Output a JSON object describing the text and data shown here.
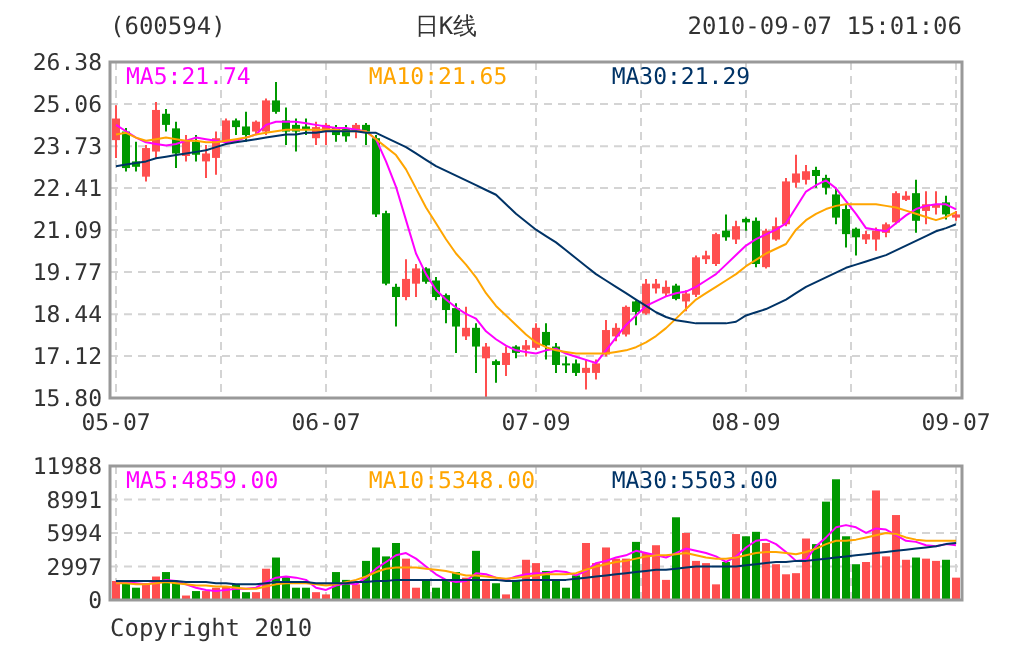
{
  "chart_data": [
    {
      "type": "candlestick",
      "title": "(600594)",
      "subtitle": "日K线",
      "annotations": [
        "2010-09-07 15:01:06"
      ],
      "categories": [
        "05-07",
        null,
        null,
        null,
        null,
        null,
        null,
        null,
        null,
        null,
        null,
        null,
        null,
        null,
        null,
        null,
        null,
        null,
        null,
        null,
        null,
        "06-07",
        null,
        null,
        null,
        null,
        null,
        null,
        null,
        null,
        null,
        null,
        null,
        null,
        null,
        null,
        null,
        null,
        null,
        null,
        null,
        null,
        "07-09",
        null,
        null,
        null,
        null,
        null,
        null,
        null,
        null,
        null,
        null,
        null,
        null,
        null,
        null,
        null,
        null,
        null,
        null,
        null,
        null,
        "08-09",
        null,
        null,
        null,
        null,
        null,
        null,
        null,
        null,
        null,
        null,
        null,
        null,
        null,
        null,
        null,
        null,
        null,
        null,
        null,
        null,
        "09-07"
      ],
      "ohlc": [
        [
          23.92,
          25.02,
          23.36,
          24.6
        ],
        [
          24.19,
          24.3,
          22.93,
          23.04
        ],
        [
          23.25,
          23.87,
          22.93,
          23.08
        ],
        [
          22.77,
          23.77,
          22.62,
          23.67
        ],
        [
          23.56,
          25.12,
          23.36,
          24.87
        ],
        [
          24.75,
          24.9,
          24.19,
          24.4
        ],
        [
          24.29,
          24.5,
          23.04,
          23.5
        ],
        [
          23.42,
          24.08,
          23.25,
          23.92
        ],
        [
          23.87,
          24.08,
          23.25,
          23.46
        ],
        [
          23.25,
          23.77,
          22.73,
          23.5
        ],
        [
          23.36,
          24.19,
          22.83,
          23.98
        ],
        [
          23.87,
          24.6,
          23.87,
          24.54
        ],
        [
          24.54,
          24.6,
          24.08,
          24.33
        ],
        [
          24.35,
          24.81,
          23.87,
          24.08
        ],
        [
          24.19,
          24.54,
          24.08,
          24.5
        ],
        [
          24.19,
          25.23,
          24.08,
          25.17
        ],
        [
          25.17,
          25.75,
          24.75,
          24.81
        ],
        [
          24.54,
          24.95,
          23.77,
          24.19
        ],
        [
          24.4,
          24.6,
          23.56,
          24.19
        ],
        [
          24.35,
          24.6,
          24.08,
          24.25
        ],
        [
          23.98,
          24.5,
          23.77,
          24.33
        ],
        [
          24.19,
          24.46,
          23.77,
          24.4
        ],
        [
          24.33,
          24.4,
          23.87,
          24.08
        ],
        [
          24.29,
          24.4,
          23.87,
          24.04
        ],
        [
          24.19,
          24.46,
          23.98,
          24.4
        ],
        [
          24.4,
          24.46,
          23.77,
          24.19
        ],
        [
          23.98,
          24.08,
          21.5,
          21.58
        ],
        [
          21.62,
          21.7,
          19.35,
          19.4
        ],
        [
          19.3,
          19.4,
          18.05,
          18.98
        ],
        [
          18.98,
          20.17,
          18.88,
          19.55
        ],
        [
          19.4,
          20.02,
          18.98,
          19.88
        ],
        [
          19.88,
          19.92,
          19.4,
          19.46
        ],
        [
          19.5,
          19.61,
          18.88,
          18.98
        ],
        [
          19.04,
          19.09,
          18.15,
          18.57
        ],
        [
          18.63,
          18.78,
          17.22,
          18.05
        ],
        [
          17.74,
          18.67,
          17.63,
          18.01
        ],
        [
          18.01,
          18.15,
          16.59,
          17.42
        ],
        [
          17.05,
          17.53,
          15.8,
          17.42
        ],
        [
          16.96,
          17.01,
          16.28,
          16.84
        ],
        [
          16.84,
          17.42,
          16.49,
          17.22
        ],
        [
          17.42,
          17.46,
          17.05,
          17.22
        ],
        [
          17.32,
          17.63,
          17.11,
          17.46
        ],
        [
          17.38,
          18.15,
          17.32,
          18.01
        ],
        [
          17.88,
          18.15,
          17.01,
          17.46
        ],
        [
          17.42,
          17.53,
          16.59,
          16.84
        ],
        [
          16.89,
          17.11,
          16.59,
          16.84
        ],
        [
          16.89,
          17.01,
          16.49,
          16.59
        ],
        [
          16.59,
          17.01,
          16.07,
          16.75
        ],
        [
          16.59,
          17.01,
          16.38,
          16.89
        ],
        [
          17.17,
          18.26,
          17.11,
          17.94
        ],
        [
          17.74,
          18.15,
          17.59,
          18.01
        ],
        [
          17.8,
          18.71,
          17.74,
          18.67
        ],
        [
          18.84,
          18.88,
          18.09,
          18.51
        ],
        [
          18.46,
          19.55,
          18.42,
          19.4
        ],
        [
          19.25,
          19.55,
          19.09,
          19.4
        ],
        [
          19.09,
          19.5,
          18.98,
          19.3
        ],
        [
          19.34,
          19.4,
          18.88,
          18.92
        ],
        [
          18.84,
          19.19,
          18.53,
          19.09
        ],
        [
          19.05,
          20.29,
          18.98,
          20.23
        ],
        [
          20.17,
          20.44,
          20.02,
          20.29
        ],
        [
          20.02,
          21.0,
          19.96,
          20.96
        ],
        [
          21.07,
          21.58,
          20.75,
          20.86
        ],
        [
          20.79,
          21.38,
          20.65,
          21.21
        ],
        [
          21.44,
          21.48,
          21.07,
          21.33
        ],
        [
          21.38,
          21.48,
          19.92,
          20.02
        ],
        [
          19.92,
          21.13,
          19.88,
          21.07
        ],
        [
          20.79,
          21.48,
          20.75,
          21.21
        ],
        [
          21.27,
          22.73,
          21.21,
          22.62
        ],
        [
          22.58,
          23.46,
          22.42,
          22.87
        ],
        [
          22.67,
          23.14,
          22.52,
          22.94
        ],
        [
          22.98,
          23.08,
          22.42,
          22.79
        ],
        [
          22.73,
          22.83,
          22.21,
          22.42
        ],
        [
          22.21,
          22.42,
          21.27,
          21.48
        ],
        [
          21.75,
          21.9,
          20.54,
          20.96
        ],
        [
          21.13,
          21.17,
          20.29,
          20.86
        ],
        [
          20.79,
          21.07,
          20.65,
          20.96
        ],
        [
          20.79,
          21.17,
          20.44,
          21.07
        ],
        [
          21.0,
          21.33,
          20.86,
          21.27
        ],
        [
          21.33,
          22.31,
          21.27,
          22.25
        ],
        [
          22.04,
          22.31,
          22.0,
          22.17
        ],
        [
          22.25,
          22.67,
          21.0,
          21.38
        ],
        [
          21.69,
          22.31,
          21.27,
          21.9
        ],
        [
          21.79,
          22.31,
          21.58,
          21.9
        ],
        [
          21.96,
          22.17,
          21.42,
          21.58
        ],
        [
          21.48,
          21.69,
          21.38,
          21.58
        ]
      ],
      "colors": [
        "#ff4f4f",
        "#009900",
        "#009900",
        "#ff4f4f",
        "#ff4f4f",
        "#009900",
        "#009900",
        "#ff4f4f",
        "#009900",
        "#ff4f4f",
        "#ff4f4f",
        "#ff4f4f",
        "#009900",
        "#009900",
        "#ff4f4f",
        "#ff4f4f",
        "#009900",
        "#009900",
        "#009900",
        "#009900",
        "#ff4f4f",
        "#ff4f4f",
        "#009900",
        "#009900",
        "#ff4f4f",
        "#009900",
        "#009900",
        "#009900",
        "#009900",
        "#ff4f4f",
        "#ff4f4f",
        "#009900",
        "#009900",
        "#009900",
        "#009900",
        "#ff4f4f",
        "#009900",
        "#ff4f4f",
        "#009900",
        "#ff4f4f",
        "#009900",
        "#ff4f4f",
        "#ff4f4f",
        "#009900",
        "#009900",
        "#009900",
        "#009900",
        "#ff4f4f",
        "#ff4f4f",
        "#ff4f4f",
        "#ff4f4f",
        "#ff4f4f",
        "#009900",
        "#ff4f4f",
        "#ff4f4f",
        "#ff4f4f",
        "#009900",
        "#ff4f4f",
        "#ff4f4f",
        "#ff4f4f",
        "#ff4f4f",
        "#009900",
        "#ff4f4f",
        "#009900",
        "#009900",
        "#ff4f4f",
        "#ff4f4f",
        "#ff4f4f",
        "#ff4f4f",
        "#ff4f4f",
        "#009900",
        "#009900",
        "#009900",
        "#009900",
        "#009900",
        "#ff4f4f",
        "#ff4f4f",
        "#ff4f4f",
        "#ff4f4f",
        "#ff4f4f",
        "#009900",
        "#ff4f4f",
        "#ff4f4f",
        "#009900",
        "#ff4f4f"
      ],
      "series": [
        {
          "type": "line",
          "name": "MA5:21.74",
          "color": "#ff00ff",
          "values": [
            24.4,
            24.2,
            24.0,
            23.85,
            23.8,
            23.75,
            23.8,
            23.9,
            24.0,
            23.95,
            23.9,
            23.85,
            23.9,
            24.0,
            24.1,
            24.4,
            24.5,
            24.5,
            24.5,
            24.45,
            24.4,
            24.35,
            24.3,
            24.3,
            24.25,
            24.2,
            23.95,
            23.25,
            22.45,
            21.4,
            20.35,
            19.7,
            19.2,
            18.9,
            18.65,
            18.45,
            18.3,
            17.9,
            17.65,
            17.45,
            17.3,
            17.25,
            17.2,
            17.3,
            17.35,
            17.2,
            17.1,
            17.0,
            16.9,
            17.3,
            17.7,
            18.1,
            18.4,
            18.7,
            18.85,
            19.0,
            19.1,
            19.15,
            19.3,
            19.5,
            19.7,
            20.0,
            20.3,
            20.6,
            20.8,
            20.95,
            21.1,
            21.3,
            21.8,
            22.3,
            22.5,
            22.65,
            22.4,
            22.0,
            21.6,
            21.15,
            21.1,
            21.05,
            21.3,
            21.55,
            21.75,
            21.85,
            21.9,
            21.9,
            21.74
          ]
        },
        {
          "type": "line",
          "name": "MA10:21.65",
          "color": "#ffa500",
          "values": [
            24.1,
            24.15,
            24.0,
            23.9,
            23.95,
            24.0,
            23.95,
            23.9,
            23.9,
            23.85,
            23.85,
            23.9,
            23.95,
            24.0,
            24.1,
            24.15,
            24.2,
            24.25,
            24.25,
            24.25,
            24.25,
            24.25,
            24.25,
            24.2,
            24.2,
            24.2,
            23.95,
            23.7,
            23.45,
            23.0,
            22.4,
            21.8,
            21.3,
            20.8,
            20.35,
            20.0,
            19.6,
            19.1,
            18.7,
            18.4,
            18.1,
            17.8,
            17.55,
            17.4,
            17.3,
            17.25,
            17.2,
            17.2,
            17.2,
            17.2,
            17.25,
            17.3,
            17.4,
            17.55,
            17.75,
            18.0,
            18.3,
            18.6,
            18.9,
            19.1,
            19.3,
            19.5,
            19.7,
            19.95,
            20.15,
            20.35,
            20.5,
            20.65,
            21.1,
            21.4,
            21.6,
            21.75,
            21.85,
            21.9,
            21.9,
            21.9,
            21.9,
            21.85,
            21.8,
            21.7,
            21.6,
            21.5,
            21.4,
            21.5,
            21.65
          ]
        },
        {
          "type": "line",
          "name": "MA30:21.29",
          "color": "#003366",
          "values": [
            23.1,
            23.15,
            23.2,
            23.25,
            23.35,
            23.4,
            23.45,
            23.5,
            23.55,
            23.6,
            23.7,
            23.8,
            23.85,
            23.9,
            23.95,
            24.0,
            24.05,
            24.1,
            24.1,
            24.15,
            24.15,
            24.2,
            24.2,
            24.2,
            24.2,
            24.15,
            24.15,
            24.0,
            23.85,
            23.7,
            23.5,
            23.3,
            23.1,
            22.95,
            22.8,
            22.65,
            22.5,
            22.35,
            22.2,
            21.9,
            21.6,
            21.35,
            21.1,
            20.9,
            20.7,
            20.45,
            20.2,
            19.95,
            19.7,
            19.5,
            19.3,
            19.1,
            18.9,
            18.7,
            18.5,
            18.35,
            18.25,
            18.2,
            18.15,
            18.15,
            18.15,
            18.15,
            18.2,
            18.4,
            18.5,
            18.6,
            18.75,
            18.9,
            19.1,
            19.3,
            19.45,
            19.6,
            19.75,
            19.9,
            20.0,
            20.1,
            20.2,
            20.3,
            20.45,
            20.6,
            20.75,
            20.9,
            21.05,
            21.15,
            21.27
          ]
        }
      ],
      "ylim": [
        15.8,
        26.38
      ],
      "yticks": [
        {
          "value": 15.8,
          "label": "15.80"
        },
        17.12,
        18.44,
        19.77,
        21.09,
        22.41,
        23.73,
        25.06,
        26.38
      ],
      "grid": true,
      "legend": "top"
    },
    {
      "type": "bar",
      "annotations": [
        "Copyright 2010"
      ],
      "categories": [
        null,
        null,
        null,
        null,
        null,
        null,
        null,
        null,
        null,
        null,
        null,
        null,
        null,
        null,
        null,
        null,
        null,
        null,
        null,
        null,
        null,
        null,
        null,
        null,
        null,
        null,
        null,
        null,
        null,
        null,
        null,
        null,
        null,
        null,
        null,
        null,
        null,
        null,
        null,
        null,
        null,
        null,
        null,
        null,
        null,
        null,
        null,
        null,
        null,
        null,
        null,
        null,
        null,
        null,
        null,
        null,
        null,
        null,
        null,
        null,
        null,
        null,
        null,
        null,
        null,
        null,
        null,
        null,
        null,
        null,
        null,
        null,
        null,
        null,
        null,
        null,
        null,
        null,
        null,
        null,
        null,
        null,
        null,
        null,
        null
      ],
      "values": [
        1700,
        1500,
        1100,
        1500,
        2100,
        2500,
        1700,
        400,
        800,
        800,
        1100,
        1200,
        1400,
        700,
        700,
        2800,
        3800,
        2100,
        1100,
        1100,
        700,
        500,
        2500,
        1800,
        1400,
        3500,
        4700,
        3900,
        5100,
        3700,
        1100,
        1800,
        1100,
        1800,
        2500,
        2000,
        4400,
        1700,
        1500,
        500,
        1800,
        3600,
        3300,
        2600,
        1800,
        1100,
        2200,
        5100,
        3300,
        4700,
        3700,
        3700,
        5200,
        4200,
        4900,
        1800,
        7400,
        6000,
        3500,
        3300,
        1400,
        3400,
        5900,
        5700,
        6100,
        5100,
        3200,
        2300,
        2400,
        5500,
        5000,
        8800,
        10800,
        5700,
        3200,
        3400,
        9800,
        3900,
        7600,
        3600,
        3800,
        3700,
        3500,
        3600,
        2000
      ],
      "colors": [
        "#ff4f4f",
        "#009900",
        "#009900",
        "#ff4f4f",
        "#ff4f4f",
        "#009900",
        "#009900",
        "#ff4f4f",
        "#009900",
        "#ff4f4f",
        "#ff4f4f",
        "#ff4f4f",
        "#009900",
        "#009900",
        "#ff4f4f",
        "#ff4f4f",
        "#009900",
        "#009900",
        "#009900",
        "#009900",
        "#ff4f4f",
        "#ff4f4f",
        "#009900",
        "#009900",
        "#ff4f4f",
        "#009900",
        "#009900",
        "#009900",
        "#009900",
        "#ff4f4f",
        "#ff4f4f",
        "#009900",
        "#009900",
        "#009900",
        "#009900",
        "#ff4f4f",
        "#009900",
        "#ff4f4f",
        "#009900",
        "#ff4f4f",
        "#009900",
        "#ff4f4f",
        "#ff4f4f",
        "#009900",
        "#009900",
        "#009900",
        "#009900",
        "#ff4f4f",
        "#ff4f4f",
        "#ff4f4f",
        "#ff4f4f",
        "#ff4f4f",
        "#009900",
        "#ff4f4f",
        "#ff4f4f",
        "#ff4f4f",
        "#009900",
        "#ff4f4f",
        "#ff4f4f",
        "#ff4f4f",
        "#ff4f4f",
        "#009900",
        "#ff4f4f",
        "#009900",
        "#009900",
        "#ff4f4f",
        "#ff4f4f",
        "#ff4f4f",
        "#ff4f4f",
        "#ff4f4f",
        "#009900",
        "#009900",
        "#009900",
        "#009900",
        "#009900",
        "#ff4f4f",
        "#ff4f4f",
        "#ff4f4f",
        "#ff4f4f",
        "#ff4f4f",
        "#009900",
        "#ff4f4f",
        "#ff4f4f",
        "#009900",
        "#ff4f4f"
      ],
      "series": [
        {
          "type": "line",
          "name": "MA5:4859.00",
          "color": "#ff00ff",
          "values": [
            1500,
            1600,
            1500,
            1400,
            1600,
            1800,
            1700,
            1400,
            1100,
            900,
            800,
            900,
            1000,
            1000,
            1100,
            1600,
            2000,
            2100,
            2000,
            1800,
            1100,
            900,
            1300,
            1500,
            1400,
            2000,
            2800,
            3400,
            4000,
            4200,
            3700,
            3000,
            2300,
            1800,
            1600,
            1700,
            2400,
            2300,
            2000,
            1800,
            2100,
            2300,
            2400,
            2400,
            2600,
            2500,
            2200,
            2600,
            3300,
            3500,
            3800,
            4000,
            4400,
            4200,
            4000,
            3800,
            4200,
            4600,
            4400,
            4200,
            3900,
            3400,
            3900,
            4700,
            5300,
            5400,
            5000,
            4300,
            3500,
            3600,
            4800,
            5600,
            6500,
            6700,
            6500,
            6000,
            6400,
            6300,
            5800,
            5300,
            5200,
            4900,
            4800,
            5000,
            4900
          ]
        },
        {
          "type": "line",
          "name": "MA10:5348.00",
          "color": "#ffa500",
          "values": [
            1500,
            1500,
            1400,
            1400,
            1500,
            1600,
            1500,
            1400,
            1300,
            1300,
            1200,
            1200,
            1100,
            1000,
            1000,
            1200,
            1400,
            1500,
            1500,
            1500,
            1400,
            1300,
            1400,
            1600,
            1800,
            2100,
            2500,
            2800,
            2900,
            2900,
            2900,
            2800,
            2700,
            2600,
            2400,
            2200,
            2200,
            2100,
            2000,
            1900,
            2000,
            2100,
            2200,
            2300,
            2300,
            2300,
            2400,
            2700,
            3000,
            3200,
            3400,
            3500,
            3700,
            3900,
            4000,
            4000,
            4100,
            4200,
            4000,
            3800,
            3700,
            3700,
            3800,
            4000,
            4200,
            4300,
            4300,
            4200,
            4100,
            4300,
            4600,
            5000,
            5300,
            5300,
            5400,
            5600,
            5800,
            6000,
            5900,
            5600,
            5400,
            5300,
            5300,
            5300,
            5300
          ]
        },
        {
          "type": "line",
          "name": "MA30:5503.00",
          "color": "#003366",
          "values": [
            1700,
            1700,
            1700,
            1700,
            1700,
            1700,
            1700,
            1600,
            1600,
            1600,
            1500,
            1500,
            1400,
            1400,
            1400,
            1500,
            1600,
            1600,
            1600,
            1600,
            1500,
            1500,
            1500,
            1500,
            1600,
            1600,
            1700,
            1700,
            1800,
            1800,
            1800,
            1800,
            1800,
            1800,
            1800,
            1800,
            1800,
            1800,
            1800,
            1700,
            1700,
            1800,
            1800,
            1800,
            1800,
            1800,
            1900,
            2000,
            2100,
            2200,
            2300,
            2400,
            2500,
            2600,
            2700,
            2700,
            2800,
            2900,
            3000,
            3000,
            3000,
            3000,
            3000,
            3100,
            3200,
            3300,
            3400,
            3400,
            3500,
            3500,
            3600,
            3700,
            3800,
            3900,
            4000,
            4100,
            4200,
            4300,
            4400,
            4500,
            4600,
            4700,
            4800,
            5000,
            5100
          ]
        }
      ],
      "ylim": [
        0,
        11988
      ],
      "yticks": [
        0,
        2997,
        5994,
        8991,
        11988
      ],
      "grid": true,
      "legend": "top",
      "tick_labels": "y"
    }
  ]
}
